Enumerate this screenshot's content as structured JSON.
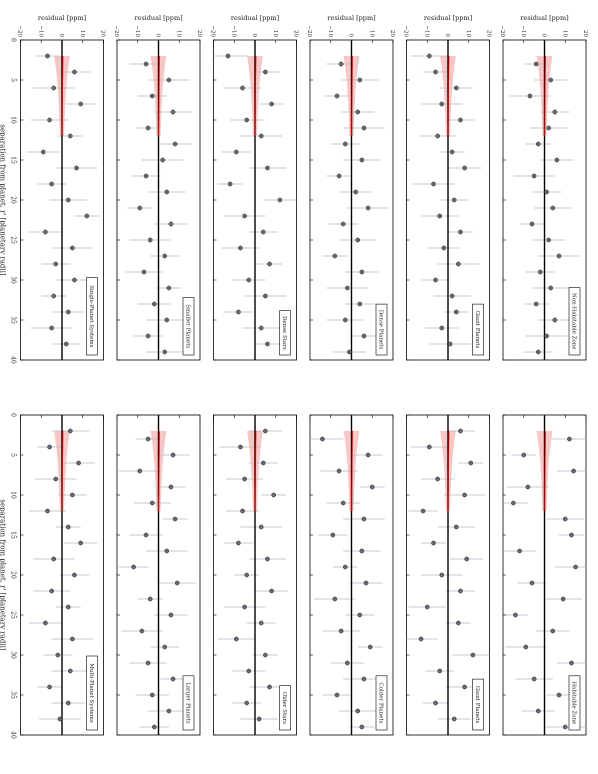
{
  "figure": {
    "orientation": "rotated 90 degrees clockwise",
    "colors": {
      "points": "#5f6b76",
      "errorbars": "#b9b9b9",
      "zero_line": "#000000",
      "fit_line": "#cc0000",
      "fit_band": "#f6a8a8"
    }
  },
  "chart_data": [
    {
      "type": "scatter",
      "panel": "Non-Habitable Zone",
      "column": "left",
      "row": 1,
      "xlabel": "",
      "ylabel": "residual [ppm]",
      "xlim": [
        0,
        40
      ],
      "ylim": [
        -20,
        20
      ],
      "xticks": [
        "0",
        "5",
        "10",
        "15",
        "20",
        "25",
        "30",
        "35",
        "40"
      ],
      "yticks": [
        "20",
        "10",
        "0",
        "−10",
        "−20"
      ],
      "x": [
        3,
        5,
        7,
        9,
        11,
        13,
        15,
        17,
        19,
        21,
        23,
        25,
        27,
        29,
        31,
        33,
        35,
        37,
        39
      ],
      "y": [
        -4,
        3,
        -7,
        5,
        2,
        -3,
        6,
        -5,
        1,
        4,
        -6,
        2,
        7,
        -2,
        3,
        -4,
        5,
        1,
        -3
      ]
    },
    {
      "type": "scatter",
      "panel": "Giant Planets",
      "column": "left",
      "row": 2,
      "xlabel": "",
      "ylabel": "residual [ppm]",
      "xlim": [
        0,
        40
      ],
      "ylim": [
        -20,
        20
      ],
      "xticks": [
        "0",
        "5",
        "10",
        "15",
        "20",
        "25",
        "30",
        "35",
        "40"
      ],
      "yticks": [
        "20",
        "10",
        "0",
        "−10",
        "−20"
      ],
      "x": [
        2,
        4,
        6,
        8,
        10,
        12,
        14,
        16,
        18,
        20,
        22,
        24,
        26,
        28,
        30,
        32,
        34,
        36,
        38
      ],
      "y": [
        -9,
        -6,
        4,
        -3,
        6,
        -5,
        2,
        8,
        -7,
        3,
        -4,
        6,
        -2,
        5,
        -6,
        2,
        4,
        -3,
        1
      ]
    },
    {
      "type": "scatter",
      "panel": "Dense Planets",
      "column": "left",
      "row": 3,
      "xlabel": "",
      "ylabel": "residual [ppm]",
      "xlim": [
        0,
        40
      ],
      "ylim": [
        -20,
        20
      ],
      "xticks": [
        "0",
        "5",
        "10",
        "15",
        "20",
        "25",
        "30",
        "35",
        "40"
      ],
      "yticks": [
        "20",
        "10",
        "0",
        "−10",
        "−20"
      ],
      "x": [
        3,
        5,
        7,
        9,
        11,
        13,
        15,
        17,
        19,
        21,
        23,
        25,
        27,
        29,
        31,
        33,
        35,
        37,
        39
      ],
      "y": [
        -5,
        4,
        -7,
        3,
        6,
        -3,
        5,
        -6,
        2,
        8,
        -4,
        3,
        -8,
        5,
        -2,
        4,
        -3,
        6,
        -1
      ]
    },
    {
      "type": "scatter",
      "panel": "Dense Stars",
      "column": "left",
      "row": 4,
      "xlabel": "",
      "ylabel": "residual [ppm]",
      "xlim": [
        0,
        40
      ],
      "ylim": [
        -20,
        20
      ],
      "xticks": [
        "0",
        "5",
        "10",
        "15",
        "20",
        "25",
        "30",
        "35",
        "40"
      ],
      "yticks": [
        "20",
        "10",
        "0",
        "−10",
        "−20"
      ],
      "x": [
        2,
        4,
        6,
        8,
        10,
        12,
        14,
        16,
        18,
        20,
        22,
        24,
        26,
        28,
        30,
        32,
        34,
        36,
        38
      ],
      "y": [
        -13,
        5,
        -6,
        8,
        -4,
        3,
        -9,
        6,
        -12,
        12,
        -5,
        4,
        -7,
        7,
        -3,
        5,
        -8,
        3,
        6
      ]
    },
    {
      "type": "scatter",
      "panel": "Smaller Planets",
      "column": "left",
      "row": 5,
      "xlabel": "",
      "ylabel": "residual [ppm]",
      "xlim": [
        0,
        40
      ],
      "ylim": [
        -20,
        20
      ],
      "xticks": [
        "0",
        "5",
        "10",
        "15",
        "20",
        "25",
        "30",
        "35",
        "40"
      ],
      "yticks": [
        "20",
        "10",
        "0",
        "−10",
        "−20"
      ],
      "x": [
        3,
        5,
        7,
        9,
        11,
        13,
        15,
        17,
        19,
        21,
        23,
        25,
        27,
        29,
        31,
        33,
        35,
        37,
        39
      ],
      "y": [
        -6,
        5,
        -3,
        7,
        -5,
        8,
        2,
        -6,
        4,
        -9,
        6,
        -4,
        3,
        -7,
        5,
        -2,
        4,
        -5,
        3
      ]
    },
    {
      "type": "scatter",
      "panel": "Single-Planet Systems",
      "column": "left",
      "row": 6,
      "xlabel": "separation from planet, r' [planetary radii]",
      "ylabel": "residual [ppm]",
      "xlim": [
        0,
        40
      ],
      "ylim": [
        -20,
        20
      ],
      "xticks": [
        "0",
        "5",
        "10",
        "15",
        "20",
        "25",
        "30",
        "35",
        "40"
      ],
      "yticks": [
        "20",
        "10",
        "0",
        "−10",
        "−20"
      ],
      "x": [
        2,
        4,
        6,
        8,
        10,
        12,
        14,
        16,
        18,
        20,
        22,
        24,
        26,
        28,
        30,
        32,
        34,
        36,
        38
      ],
      "y": [
        -7,
        6,
        -4,
        9,
        -6,
        4,
        -9,
        7,
        -5,
        3,
        12,
        -8,
        5,
        -3,
        6,
        -4,
        3,
        -5,
        2
      ]
    },
    {
      "type": "scatter",
      "panel": "Habitable Zone",
      "column": "right",
      "row": 1,
      "xlabel": "",
      "ylabel": "",
      "xlim": [
        0,
        40
      ],
      "ylim": [
        -20,
        20
      ],
      "xticks": [
        "0",
        "5",
        "10",
        "15",
        "20",
        "25",
        "30",
        "35",
        "40"
      ],
      "yticks": [],
      "x": [
        3,
        5,
        7,
        9,
        11,
        13,
        15,
        17,
        19,
        21,
        23,
        25,
        27,
        29,
        31,
        33,
        35,
        37,
        39
      ],
      "y": [
        12,
        -10,
        14,
        -8,
        -15,
        10,
        13,
        -12,
        15,
        -6,
        9,
        -14,
        4,
        -9,
        13,
        -5,
        7,
        -3,
        10
      ]
    },
    {
      "type": "scatter",
      "panel": "Giant Planets",
      "column": "right",
      "row": 2,
      "xlabel": "",
      "ylabel": "",
      "xlim": [
        0,
        40
      ],
      "ylim": [
        -20,
        20
      ],
      "xticks": [
        "0",
        "5",
        "10",
        "15",
        "20",
        "25",
        "30",
        "35",
        "40"
      ],
      "yticks": [],
      "x": [
        2,
        4,
        6,
        8,
        10,
        12,
        14,
        16,
        18,
        20,
        22,
        24,
        26,
        28,
        30,
        32,
        34,
        36,
        38
      ],
      "y": [
        6,
        -9,
        11,
        -5,
        8,
        -12,
        4,
        -7,
        9,
        -3,
        6,
        -10,
        5,
        -13,
        12,
        -4,
        8,
        -6,
        3
      ]
    },
    {
      "type": "scatter",
      "panel": "Colder Planets",
      "column": "right",
      "row": 3,
      "xlabel": "",
      "ylabel": "",
      "xlim": [
        0,
        40
      ],
      "ylim": [
        -20,
        20
      ],
      "xticks": [
        "0",
        "5",
        "10",
        "15",
        "20",
        "25",
        "30",
        "35",
        "40"
      ],
      "yticks": [],
      "x": [
        3,
        5,
        7,
        9,
        11,
        13,
        15,
        17,
        19,
        21,
        23,
        25,
        27,
        29,
        31,
        33,
        35,
        37,
        39
      ],
      "y": [
        -14,
        8,
        -6,
        10,
        -4,
        6,
        -9,
        5,
        -3,
        7,
        -8,
        4,
        -5,
        9,
        -2,
        6,
        -7,
        3,
        5
      ]
    },
    {
      "type": "scatter",
      "panel": "Older Stars",
      "column": "right",
      "row": 4,
      "xlabel": "",
      "ylabel": "",
      "xlim": [
        0,
        40
      ],
      "ylim": [
        -20,
        20
      ],
      "xticks": [
        "0",
        "5",
        "10",
        "15",
        "20",
        "25",
        "30",
        "35",
        "40"
      ],
      "yticks": [],
      "x": [
        2,
        4,
        6,
        8,
        10,
        12,
        14,
        16,
        18,
        20,
        22,
        24,
        26,
        28,
        30,
        32,
        34,
        36,
        38
      ],
      "y": [
        5,
        -7,
        4,
        -5,
        9,
        -6,
        3,
        -8,
        6,
        -4,
        8,
        -5,
        3,
        -9,
        5,
        -3,
        7,
        -4,
        2
      ]
    },
    {
      "type": "scatter",
      "panel": "Larger Planets",
      "column": "right",
      "row": 5,
      "xlabel": "",
      "ylabel": "",
      "xlim": [
        0,
        40
      ],
      "ylim": [
        -20,
        20
      ],
      "xticks": [
        "0",
        "5",
        "10",
        "15",
        "20",
        "25",
        "30",
        "35",
        "40"
      ],
      "yticks": [],
      "x": [
        3,
        5,
        7,
        9,
        11,
        13,
        15,
        17,
        19,
        21,
        23,
        25,
        27,
        29,
        31,
        33,
        35,
        37,
        39
      ],
      "y": [
        -5,
        7,
        -9,
        6,
        -3,
        8,
        -6,
        4,
        -12,
        9,
        -4,
        6,
        -8,
        3,
        -5,
        7,
        -3,
        5,
        -2
      ]
    },
    {
      "type": "scatter",
      "panel": "Multi-Planet Systems",
      "column": "right",
      "row": 6,
      "xlabel": "separation from planet, r' [planetary radii]",
      "ylabel": "",
      "xlim": [
        0,
        40
      ],
      "ylim": [
        -20,
        20
      ],
      "xticks": [
        "0",
        "5",
        "10",
        "15",
        "20",
        "25",
        "30",
        "35",
        "40"
      ],
      "yticks": [],
      "x": [
        2,
        4,
        6,
        8,
        10,
        12,
        14,
        16,
        18,
        20,
        22,
        24,
        26,
        28,
        30,
        32,
        34,
        36,
        38
      ],
      "y": [
        4,
        -6,
        8,
        -3,
        5,
        -7,
        3,
        9,
        -4,
        6,
        -5,
        3,
        -8,
        5,
        -2,
        4,
        -6,
        3,
        -1
      ]
    }
  ]
}
